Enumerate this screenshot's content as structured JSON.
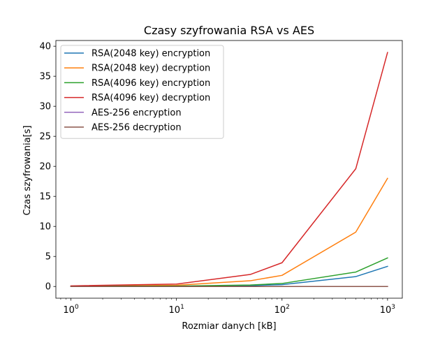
{
  "chart_data": {
    "type": "line",
    "title": "Czasy szyfrowania RSA vs AES",
    "xlabel": "Rozmiar danych [kB]",
    "ylabel": "Czas szyfrowania[s]",
    "xscale": "log",
    "xlim": [
      0.72,
      1380
    ],
    "ylim": [
      -1.95,
      40.95
    ],
    "x": [
      1,
      10,
      50,
      100,
      500,
      1000
    ],
    "x_ticks": [
      {
        "value": 1,
        "base": "10",
        "exp": "0"
      },
      {
        "value": 10,
        "base": "10",
        "exp": "1"
      },
      {
        "value": 100,
        "base": "10",
        "exp": "2"
      },
      {
        "value": 1000,
        "base": "10",
        "exp": "3"
      }
    ],
    "y_ticks": [
      "0",
      "5",
      "10",
      "15",
      "20",
      "25",
      "30",
      "35",
      "40"
    ],
    "grid": false,
    "legend_position": "upper-left",
    "series": [
      {
        "name": "RSA(2048 key) encryption",
        "color": "#1f77b4",
        "values": [
          0.02,
          0.05,
          0.15,
          0.3,
          1.65,
          3.35
        ]
      },
      {
        "name": "RSA(2048 key) decryption",
        "color": "#ff7f0e",
        "values": [
          0.05,
          0.2,
          0.95,
          1.85,
          9.05,
          18.0
        ]
      },
      {
        "name": "RSA(4096 key) encryption",
        "color": "#2ca02c",
        "values": [
          0.03,
          0.07,
          0.25,
          0.5,
          2.4,
          4.75
        ]
      },
      {
        "name": "RSA(4096 key) decryption",
        "color": "#d62728",
        "values": [
          0.1,
          0.4,
          2.0,
          3.95,
          19.6,
          38.95
        ]
      },
      {
        "name": "AES-256 encryption",
        "color": "#9467bd",
        "values": [
          0.0,
          0.0,
          0.0,
          0.0,
          0.0,
          0.0
        ]
      },
      {
        "name": "AES-256 decryption",
        "color": "#8c564b",
        "values": [
          0.0,
          0.0,
          0.0,
          0.0,
          0.0,
          0.0
        ]
      }
    ]
  }
}
